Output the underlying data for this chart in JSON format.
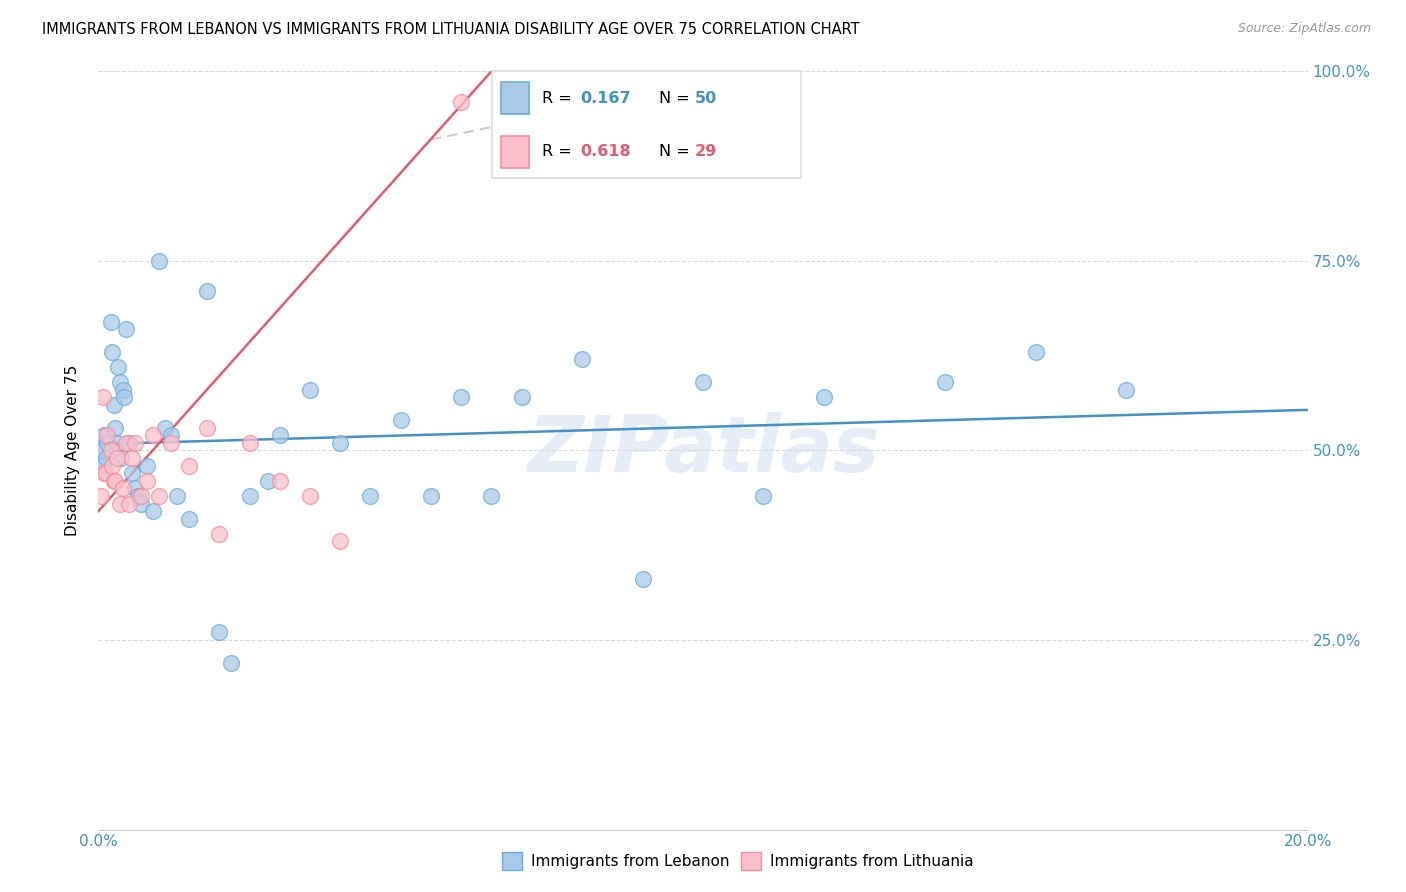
{
  "title": "IMMIGRANTS FROM LEBANON VS IMMIGRANTS FROM LITHUANIA DISABILITY AGE OVER 75 CORRELATION CHART",
  "source": "Source: ZipAtlas.com",
  "ylabel": "Disability Age Over 75",
  "legend1_r": "0.167",
  "legend1_n": "50",
  "legend2_r": "0.618",
  "legend2_n": "29",
  "watermark": "ZIPatlas",
  "lebanon_color": "#6baed6",
  "lebanon_color_fill": "#aac9e8",
  "lithuania_color": "#f48ca0",
  "lithuania_color_fill": "#f9c0cb",
  "trendline1_color": "#4292c6",
  "trendline2_color": "#e05c6e",
  "trendline_dashed_color": "#cccccc",
  "lebanon_points_x": [
    0.05,
    0.08,
    0.1,
    0.12,
    0.15,
    0.2,
    0.22,
    0.25,
    0.28,
    0.3,
    0.32,
    0.35,
    0.38,
    0.4,
    0.42,
    0.45,
    0.5,
    0.55,
    0.6,
    0.65,
    0.7,
    0.8,
    0.9,
    1.0,
    1.1,
    1.2,
    1.3,
    1.5,
    1.8,
    2.0,
    2.2,
    2.5,
    2.8,
    3.0,
    3.5,
    4.0,
    4.5,
    5.0,
    5.5,
    6.0,
    6.5,
    7.0,
    8.0,
    9.0,
    10.0,
    11.0,
    12.0,
    14.0,
    15.5,
    17.0
  ],
  "lebanon_points_y": [
    50,
    48,
    52,
    49,
    51,
    67,
    63,
    56,
    53,
    51,
    61,
    59,
    49,
    58,
    57,
    66,
    51,
    47,
    45,
    44,
    43,
    48,
    42,
    75,
    53,
    52,
    44,
    41,
    71,
    26,
    22,
    44,
    46,
    52,
    58,
    51,
    44,
    54,
    44,
    57,
    44,
    57,
    62,
    33,
    59,
    44,
    57,
    59,
    63,
    58
  ],
  "lithuania_points_x": [
    0.05,
    0.08,
    0.1,
    0.12,
    0.15,
    0.2,
    0.22,
    0.25,
    0.28,
    0.3,
    0.35,
    0.4,
    0.45,
    0.5,
    0.55,
    0.6,
    0.7,
    0.8,
    0.9,
    1.0,
    1.2,
    1.5,
    1.8,
    2.0,
    2.5,
    3.0,
    3.5,
    4.0,
    6.0
  ],
  "lithuania_points_y": [
    44,
    57,
    47,
    47,
    52,
    50,
    48,
    46,
    46,
    49,
    43,
    45,
    51,
    43,
    49,
    51,
    44,
    46,
    52,
    44,
    51,
    48,
    53,
    39,
    51,
    46,
    44,
    38,
    96
  ],
  "xmin": 0.0,
  "xmax": 20.0,
  "ymin": 0.0,
  "ymax": 100.0,
  "yticks": [
    0,
    25,
    50,
    75,
    100
  ],
  "xtick_left_label": "0.0%",
  "xtick_right_label": "20.0%",
  "ytick_labels_right": [
    "",
    "25.0%",
    "50.0%",
    "75.0%",
    "100.0%"
  ],
  "tick_color": "#4292c6",
  "grid_color": "#d8d8d8",
  "bottom_legend_label1": "Immigrants from Lebanon",
  "bottom_legend_label2": "Immigrants from Lithuania"
}
